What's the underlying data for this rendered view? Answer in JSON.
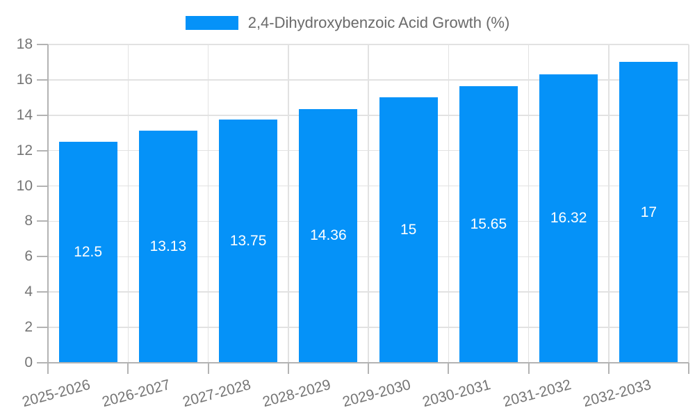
{
  "chart_data": {
    "type": "bar",
    "categories": [
      "2025-2026",
      "2026-2027",
      "2027-2028",
      "2028-2029",
      "2029-2030",
      "2030-2031",
      "2031-2032",
      "2032-2033"
    ],
    "series": [
      {
        "name": "2,4-Dihydroxybenzoic Acid Growth (%)",
        "values": [
          12.5,
          13.13,
          13.75,
          14.36,
          15,
          15.65,
          16.32,
          17
        ]
      }
    ],
    "value_labels": [
      "12.5",
      "13.13",
      "13.75",
      "14.36",
      "15",
      "15.65",
      "16.32",
      "17"
    ],
    "ylim": [
      0,
      18
    ],
    "ytick_step": 2,
    "ytick_labels": [
      "0",
      "2",
      "4",
      "6",
      "8",
      "10",
      "12",
      "14",
      "16",
      "18"
    ],
    "grid": true,
    "legend": {
      "position": "top-center",
      "entries": [
        "2,4-Dihydroxybenzoic Acid Growth (%)"
      ]
    },
    "xtick_rotation_deg": -15,
    "colors": {
      "bar": "#0592f8",
      "grid": "#e2e2e2",
      "axis_line": "#b3b3b3",
      "axis_text": "#757575",
      "legend_text": "#6a6a6a",
      "bar_value_text": "#ffffff",
      "background": "#ffffff"
    }
  }
}
